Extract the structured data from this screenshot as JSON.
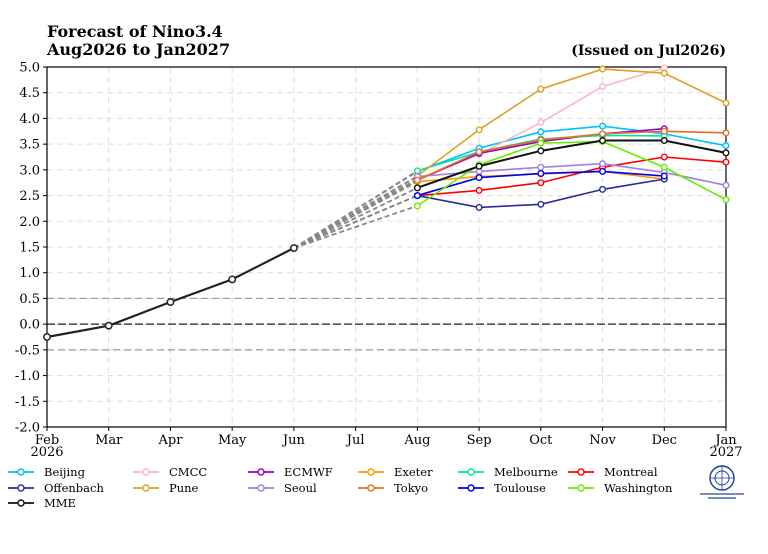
{
  "chart_data": {
    "type": "line",
    "title": "Forecast of Nino3.4",
    "subtitle": "Aug2026 to Jan2027",
    "issued": "(Issued on Jul2026)",
    "x_labels": [
      "Feb\n2026",
      "Mar",
      "Apr",
      "May",
      "Jun",
      "Jul",
      "Aug",
      "Sep",
      "Oct",
      "Nov",
      "Dec",
      "Jan\n2027"
    ],
    "ylim": [
      -2.0,
      5.0
    ],
    "yticks": [
      "-2.0",
      "-1.5",
      "-1.0",
      "-0.5",
      "0.0",
      "0.5",
      "1.0",
      "1.5",
      "2.0",
      "2.5",
      "3.0",
      "3.5",
      "4.0",
      "4.5",
      "5.0"
    ],
    "grid": true,
    "reference_lines": [
      0.5,
      0.0,
      -0.5
    ],
    "observed": {
      "x": [
        "Feb",
        "Mar",
        "Apr",
        "May",
        "Jun"
      ],
      "values": [
        -0.25,
        -0.03,
        0.43,
        0.87,
        1.48
      ],
      "color": "#222222"
    },
    "series": [
      {
        "name": "Beijing",
        "color": "#00bfff",
        "values": [
          2.97,
          3.42,
          3.74,
          3.85,
          3.7,
          3.47
        ]
      },
      {
        "name": "CMCC",
        "color": "#ffb6c1",
        "values": [
          2.82,
          3.3,
          3.92,
          4.62,
          4.98,
          null
        ]
      },
      {
        "name": "ECMWF",
        "color": "#9400d3",
        "values": [
          2.8,
          3.32,
          3.55,
          3.7,
          3.8,
          null
        ]
      },
      {
        "name": "Exeter",
        "color": "#ff9900",
        "values": [
          2.77,
          2.87,
          2.92,
          2.97,
          2.82,
          null
        ]
      },
      {
        "name": "Melbourne",
        "color": "#00e5a0",
        "values": [
          2.98,
          3.35,
          3.6,
          3.67,
          3.66,
          null
        ]
      },
      {
        "name": "Montreal",
        "color": "#ff0000",
        "values": [
          2.5,
          2.6,
          2.75,
          3.05,
          3.25,
          3.15
        ]
      },
      {
        "name": "Offenbach",
        "color": "#2a2aa0",
        "values": [
          2.5,
          2.27,
          2.33,
          2.62,
          2.82,
          null
        ]
      },
      {
        "name": "Pune",
        "color": "#e0a020",
        "values": [
          2.88,
          3.78,
          4.57,
          4.96,
          4.88,
          4.3
        ]
      },
      {
        "name": "Seoul",
        "color": "#a080e0",
        "values": [
          2.87,
          2.97,
          3.05,
          3.12,
          2.95,
          2.7
        ]
      },
      {
        "name": "Tokyo",
        "color": "#e67020",
        "values": [
          2.8,
          3.35,
          3.58,
          3.7,
          3.75,
          3.72
        ]
      },
      {
        "name": "Toulouse",
        "color": "#0000ee",
        "values": [
          2.5,
          2.85,
          2.93,
          2.97,
          2.88,
          null
        ]
      },
      {
        "name": "Washington",
        "color": "#66ee00",
        "values": [
          2.3,
          3.1,
          3.52,
          3.55,
          3.05,
          2.42
        ]
      },
      {
        "name": "MME",
        "color": "#111111",
        "values": [
          2.65,
          3.07,
          3.37,
          3.57,
          3.57,
          3.33
        ]
      }
    ]
  }
}
